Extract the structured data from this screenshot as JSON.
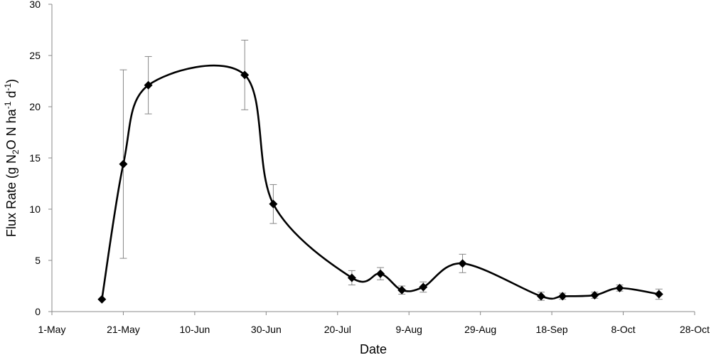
{
  "chart_data": {
    "type": "line",
    "title": "",
    "xlabel": "Date",
    "ylabel_parts": {
      "pre": "Flux Rate (g N",
      "sub": "2",
      "mid": "O N ha",
      "sup1": "-1",
      "mid2": " d",
      "sup2": "-1",
      "post": ")"
    },
    "ylim": [
      0,
      30
    ],
    "yticks": [
      "0",
      "5",
      "10",
      "15",
      "20",
      "25",
      "30"
    ],
    "xlim": [
      "2015-05-01",
      "2015-10-28"
    ],
    "xticks": [
      "1-May",
      "21-May",
      "10-Jun",
      "30-Jun",
      "20-Jul",
      "9-Aug",
      "29-Aug",
      "18-Sep",
      "8-Oct",
      "28-Oct"
    ],
    "grid": false,
    "legend": "none",
    "smooth": true,
    "marker": "diamond",
    "color": "#000000",
    "series": [
      {
        "points": [
          {
            "x": "2015-05-15",
            "y": 1.2,
            "err": 0.0
          },
          {
            "x": "2015-05-21",
            "y": 14.4,
            "err": 9.2
          },
          {
            "x": "2015-05-28",
            "y": 22.1,
            "err": 2.8
          },
          {
            "x": "2015-06-24",
            "y": 23.1,
            "err": 3.4
          },
          {
            "x": "2015-07-02",
            "y": 10.5,
            "err": 1.9
          },
          {
            "x": "2015-07-24",
            "y": 3.3,
            "err": 0.7
          },
          {
            "x": "2015-08-01",
            "y": 3.7,
            "err": 0.6
          },
          {
            "x": "2015-08-07",
            "y": 2.1,
            "err": 0.4
          },
          {
            "x": "2015-08-13",
            "y": 2.4,
            "err": 0.5
          },
          {
            "x": "2015-08-24",
            "y": 4.7,
            "err": 0.9
          },
          {
            "x": "2015-09-15",
            "y": 1.5,
            "err": 0.4
          },
          {
            "x": "2015-09-21",
            "y": 1.5,
            "err": 0.3
          },
          {
            "x": "2015-09-30",
            "y": 1.6,
            "err": 0.3
          },
          {
            "x": "2015-10-07",
            "y": 2.3,
            "err": 0.3
          },
          {
            "x": "2015-10-18",
            "y": 1.7,
            "err": 0.5
          }
        ]
      }
    ]
  }
}
